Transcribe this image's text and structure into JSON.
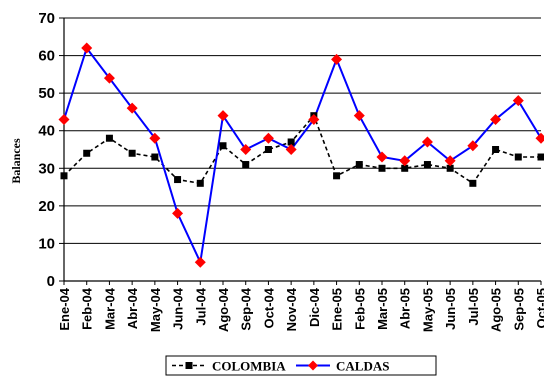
{
  "chart_data": {
    "type": "line",
    "categories": [
      "Ene-04",
      "Feb-04",
      "Mar-04",
      "Abr-04",
      "May-04",
      "Jun-04",
      "Jul-04",
      "Ago-04",
      "Sep-04",
      "Oct-04",
      "Nov-04",
      "Dic-04",
      "Ene-05",
      "Feb-05",
      "Mar-05",
      "Abr-05",
      "May-05",
      "Jun-05",
      "Jul-05",
      "Ago-05",
      "Sep-05",
      "Oct-05"
    ],
    "series": [
      {
        "name": "COLOMBIA",
        "color": "#000000",
        "line_style": "dashed",
        "marker": "square",
        "values": [
          28,
          34,
          38,
          34,
          33,
          27,
          26,
          36,
          31,
          35,
          37,
          44,
          28,
          31,
          30,
          30,
          31,
          30,
          26,
          35,
          33,
          33
        ]
      },
      {
        "name": "CALDAS",
        "color": "#0000ff",
        "marker_color": "#ff0000",
        "line_style": "solid",
        "marker": "diamond",
        "values": [
          43,
          62,
          54,
          46,
          38,
          18,
          5,
          44,
          35,
          38,
          35,
          43,
          59,
          44,
          33,
          32,
          37,
          32,
          36,
          43,
          48,
          38
        ]
      }
    ],
    "ylabel": "Balances",
    "xlabel": "",
    "title": "",
    "ylim": [
      0,
      70
    ],
    "yticks": [
      0,
      10,
      20,
      30,
      40,
      50,
      60,
      70
    ],
    "grid": true,
    "legend_position": "bottom"
  }
}
